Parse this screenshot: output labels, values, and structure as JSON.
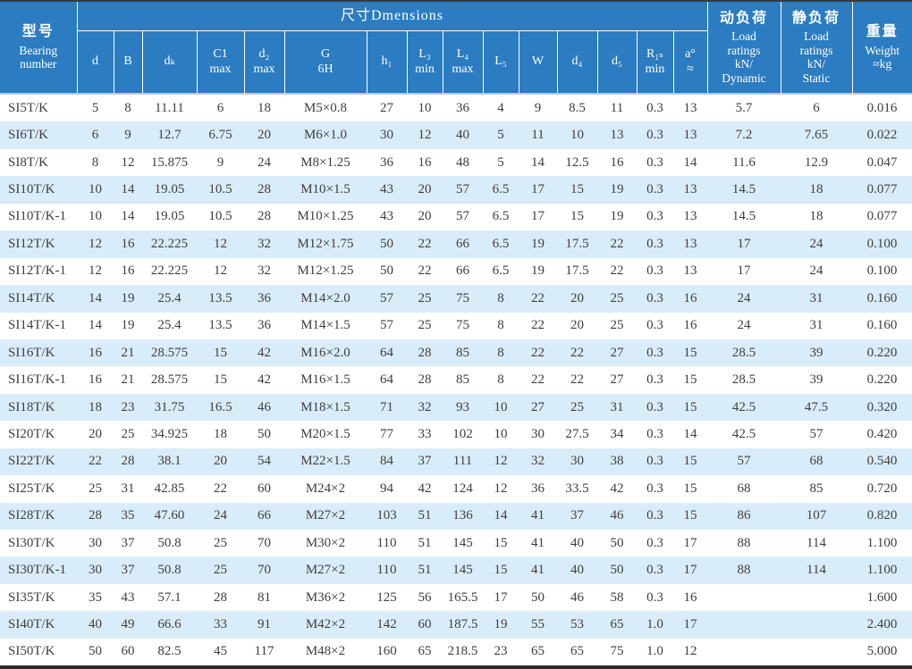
{
  "table": {
    "model_header": {
      "zh": "型号",
      "en": "Bearing\nnumber"
    },
    "group_header": "尺寸Dmensions",
    "dynamic_header": {
      "zh": "动负荷",
      "en": "Load\nratings\nkN/\nDynamic"
    },
    "static_header": {
      "zh": "静负荷",
      "en": "Load\nratings\nkN/\nStatic"
    },
    "weight_header": {
      "zh": "重量",
      "en": "Weight\n≈kg"
    },
    "sub_headers": [
      "d",
      "B",
      "dₖ",
      "C1\nmax",
      "d₂\nmax",
      "G\n6H",
      "h₁",
      "L₃\nmin",
      "L₄\nmax",
      "L₅",
      "W",
      "d₄",
      "d₅",
      "R₁ₛ\nmin",
      "a°\n≈"
    ],
    "colors": {
      "header_bg": "#2b7cc0",
      "stripe": "#d9ecf9",
      "header_text": "#ffffff",
      "body_text": "#3e3e3e"
    },
    "rows": [
      [
        "SI5T/K",
        "5",
        "8",
        "11.11",
        "6",
        "18",
        "M5×0.8",
        "27",
        "10",
        "36",
        "4",
        "9",
        "8.5",
        "11",
        "0.3",
        "13",
        "5.7",
        "6",
        "0.016"
      ],
      [
        "SI6T/K",
        "6",
        "9",
        "12.7",
        "6.75",
        "20",
        "M6×1.0",
        "30",
        "12",
        "40",
        "5",
        "11",
        "10",
        "13",
        "0.3",
        "13",
        "7.2",
        "7.65",
        "0.022"
      ],
      [
        "SI8T/K",
        "8",
        "12",
        "15.875",
        "9",
        "24",
        "M8×1.25",
        "36",
        "16",
        "48",
        "5",
        "14",
        "12.5",
        "16",
        "0.3",
        "14",
        "11.6",
        "12.9",
        "0.047"
      ],
      [
        "SI10T/K",
        "10",
        "14",
        "19.05",
        "10.5",
        "28",
        "M10×1.5",
        "43",
        "20",
        "57",
        "6.5",
        "17",
        "15",
        "19",
        "0.3",
        "13",
        "14.5",
        "18",
        "0.077"
      ],
      [
        "SI10T/K-1",
        "10",
        "14",
        "19.05",
        "10.5",
        "28",
        "M10×1.25",
        "43",
        "20",
        "57",
        "6.5",
        "17",
        "15",
        "19",
        "0.3",
        "13",
        "14.5",
        "18",
        "0.077"
      ],
      [
        "SI12T/K",
        "12",
        "16",
        "22.225",
        "12",
        "32",
        "M12×1.75",
        "50",
        "22",
        "66",
        "6.5",
        "19",
        "17.5",
        "22",
        "0.3",
        "13",
        "17",
        "24",
        "0.100"
      ],
      [
        "SI12T/K-1",
        "12",
        "16",
        "22.225",
        "12",
        "32",
        "M12×1.25",
        "50",
        "22",
        "66",
        "6.5",
        "19",
        "17.5",
        "22",
        "0.3",
        "13",
        "17",
        "24",
        "0.100"
      ],
      [
        "SI14T/K",
        "14",
        "19",
        "25.4",
        "13.5",
        "36",
        "M14×2.0",
        "57",
        "25",
        "75",
        "8",
        "22",
        "20",
        "25",
        "0.3",
        "16",
        "24",
        "31",
        "0.160"
      ],
      [
        "SI14T/K-1",
        "14",
        "19",
        "25.4",
        "13.5",
        "36",
        "M14×1.5",
        "57",
        "25",
        "75",
        "8",
        "22",
        "20",
        "25",
        "0.3",
        "16",
        "24",
        "31",
        "0.160"
      ],
      [
        "SI16T/K",
        "16",
        "21",
        "28.575",
        "15",
        "42",
        "M16×2.0",
        "64",
        "28",
        "85",
        "8",
        "22",
        "22",
        "27",
        "0.3",
        "15",
        "28.5",
        "39",
        "0.220"
      ],
      [
        "SI16T/K-1",
        "16",
        "21",
        "28.575",
        "15",
        "42",
        "M16×1.5",
        "64",
        "28",
        "85",
        "8",
        "22",
        "22",
        "27",
        "0.3",
        "15",
        "28.5",
        "39",
        "0.220"
      ],
      [
        "SI18T/K",
        "18",
        "23",
        "31.75",
        "16.5",
        "46",
        "M18×1.5",
        "71",
        "32",
        "93",
        "10",
        "27",
        "25",
        "31",
        "0.3",
        "15",
        "42.5",
        "47.5",
        "0.320"
      ],
      [
        "SI20T/K",
        "20",
        "25",
        "34.925",
        "18",
        "50",
        "M20×1.5",
        "77",
        "33",
        "102",
        "10",
        "30",
        "27.5",
        "34",
        "0.3",
        "14",
        "42.5",
        "57",
        "0.420"
      ],
      [
        "SI22T/K",
        "22",
        "28",
        "38.1",
        "20",
        "54",
        "M22×1.5",
        "84",
        "37",
        "111",
        "12",
        "32",
        "30",
        "38",
        "0.3",
        "15",
        "57",
        "68",
        "0.540"
      ],
      [
        "SI25T/K",
        "25",
        "31",
        "42.85",
        "22",
        "60",
        "M24×2",
        "94",
        "42",
        "124",
        "12",
        "36",
        "33.5",
        "42",
        "0.3",
        "15",
        "68",
        "85",
        "0.720"
      ],
      [
        "SI28T/K",
        "28",
        "35",
        "47.60",
        "24",
        "66",
        "M27×2",
        "103",
        "51",
        "136",
        "14",
        "41",
        "37",
        "46",
        "0.3",
        "15",
        "86",
        "107",
        "0.820"
      ],
      [
        "SI30T/K",
        "30",
        "37",
        "50.8",
        "25",
        "70",
        "M30×2",
        "110",
        "51",
        "145",
        "15",
        "41",
        "40",
        "50",
        "0.3",
        "17",
        "88",
        "114",
        "1.100"
      ],
      [
        "SI30T/K-1",
        "30",
        "37",
        "50.8",
        "25",
        "70",
        "M27×2",
        "110",
        "51",
        "145",
        "15",
        "41",
        "40",
        "50",
        "0.3",
        "17",
        "88",
        "114",
        "1.100"
      ],
      [
        "SI35T/K",
        "35",
        "43",
        "57.1",
        "28",
        "81",
        "M36×2",
        "125",
        "56",
        "165.5",
        "17",
        "50",
        "46",
        "58",
        "0.3",
        "16",
        "",
        "",
        "1.600"
      ],
      [
        "SI40T/K",
        "40",
        "49",
        "66.6",
        "33",
        "91",
        "M42×2",
        "142",
        "60",
        "187.5",
        "19",
        "55",
        "53",
        "65",
        "1.0",
        "17",
        "",
        "",
        "2.400"
      ],
      [
        "SI50T/K",
        "50",
        "60",
        "82.5",
        "45",
        "117",
        "M48×2",
        "160",
        "65",
        "218.5",
        "23",
        "65",
        "65",
        "75",
        "1.0",
        "12",
        "",
        "",
        "5.000"
      ]
    ]
  }
}
